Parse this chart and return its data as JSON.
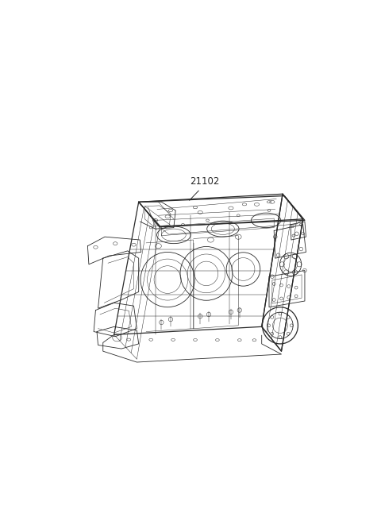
{
  "background_color": "#ffffff",
  "label_text": "21102",
  "label_fontsize": 8.5,
  "label_color": "#2a2a2a",
  "line_color": "#2a2a2a",
  "lw_main": 0.9,
  "lw_med": 0.6,
  "lw_thin": 0.35,
  "figure_width": 4.8,
  "figure_height": 6.56,
  "dpi": 100
}
